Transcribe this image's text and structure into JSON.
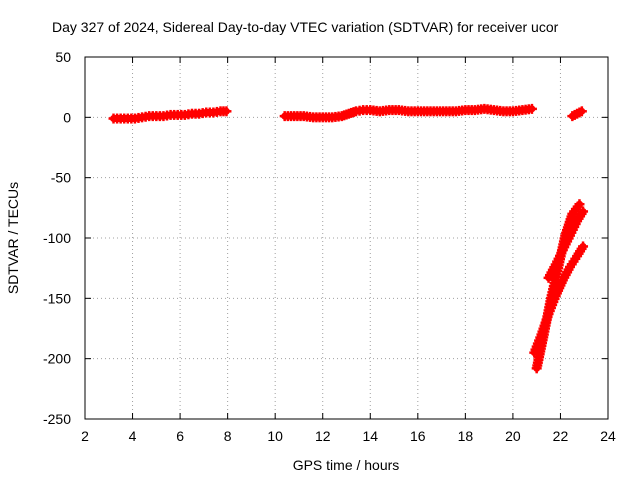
{
  "chart_data": {
    "type": "scatter",
    "title": "Day 327 of 2024, Sidereal Day-to-day VTEC variation (SDTVAR) for receiver ucor",
    "xlabel": "GPS time / hours",
    "ylabel": "SDTVAR / TECUs",
    "xlim": [
      2,
      24
    ],
    "ylim": [
      -250,
      50
    ],
    "xticks": [
      2,
      4,
      6,
      8,
      10,
      12,
      14,
      16,
      18,
      20,
      22,
      24
    ],
    "yticks": [
      -250,
      -200,
      -150,
      -100,
      -50,
      0,
      50
    ],
    "grid": true,
    "marker": "plus",
    "color": "#ff0000",
    "series": [
      {
        "name": "segment-1",
        "x": [
          3.2,
          3.5,
          3.8,
          4.1,
          4.4,
          4.7,
          5.0,
          5.3,
          5.6,
          5.9,
          6.2,
          6.5,
          6.8,
          7.1,
          7.4,
          7.7,
          7.95
        ],
        "y": [
          -1,
          -1,
          -1,
          -1,
          0,
          1,
          1,
          1,
          2,
          2,
          2,
          3,
          3,
          4,
          4,
          5,
          5
        ]
      },
      {
        "name": "segment-2",
        "x": [
          10.4,
          10.8,
          11.2,
          11.6,
          12.0,
          12.4,
          12.8,
          13.1,
          13.4,
          13.7,
          14.0,
          14.4,
          14.8,
          15.2,
          15.6,
          16.0,
          16.4,
          16.8,
          17.2,
          17.6,
          18.0,
          18.4,
          18.8,
          19.2,
          19.6,
          20.0,
          20.4,
          20.8
        ],
        "y": [
          1,
          1,
          1,
          0,
          0,
          0,
          1,
          3,
          5,
          6,
          6,
          5,
          6,
          6,
          5,
          5,
          5,
          5,
          5,
          5,
          6,
          6,
          7,
          6,
          5,
          5,
          6,
          7
        ]
      },
      {
        "name": "segment-3",
        "x": [
          22.5,
          22.7,
          22.9
        ],
        "y": [
          1,
          3,
          5
        ]
      },
      {
        "name": "descent-a",
        "x": [
          21.0,
          21.3,
          21.6,
          21.9,
          22.2,
          22.5,
          22.8
        ],
        "y": [
          -208,
          -180,
          -150,
          -125,
          -98,
          -80,
          -72
        ]
      },
      {
        "name": "descent-b",
        "x": [
          20.9,
          21.2,
          21.5,
          21.8,
          22.1,
          22.4,
          22.7,
          22.95
        ],
        "y": [
          -195,
          -180,
          -163,
          -148,
          -135,
          -124,
          -115,
          -107
        ]
      },
      {
        "name": "descent-c",
        "x": [
          21.5,
          21.8,
          22.1,
          22.4,
          22.7,
          22.95
        ],
        "y": [
          -133,
          -122,
          -110,
          -98,
          -86,
          -78
        ]
      }
    ]
  }
}
